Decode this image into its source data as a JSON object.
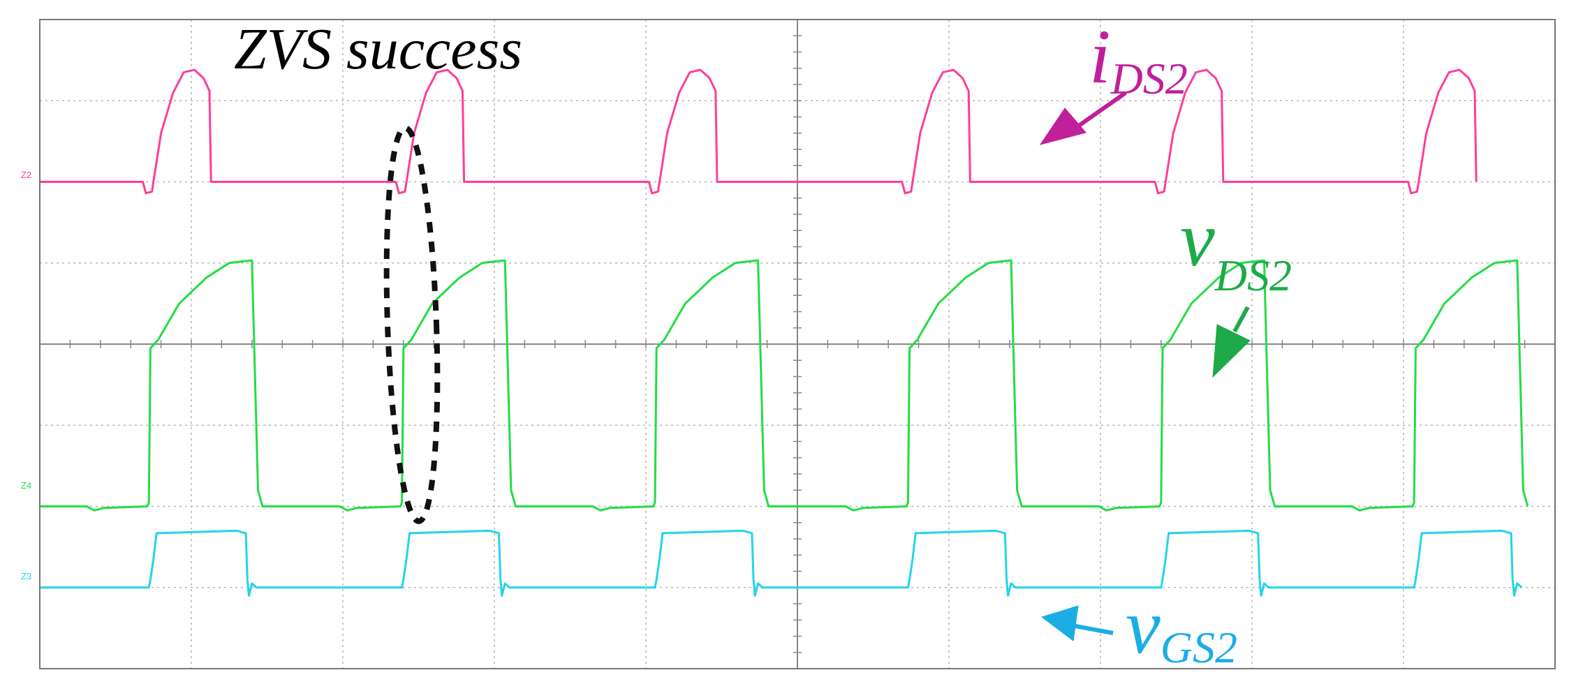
{
  "chart_data": {
    "type": "line",
    "title": "",
    "grid": true,
    "grid_divisions": {
      "x": 10,
      "y": 8
    },
    "annotation": "ZVS success",
    "period_divisions": 1.67,
    "cycles": 6,
    "series": [
      {
        "name_main": "i",
        "name_sub": "DS2",
        "color": "#ff3d9a",
        "label_color": "#c0209a",
        "channel_marker": "Z2",
        "baseline_div": 6.0,
        "waveform": [
          [
            0.0,
            0.0
          ],
          [
            0.68,
            0.0
          ],
          [
            0.7,
            -0.14
          ],
          [
            0.74,
            -0.12
          ],
          [
            0.8,
            0.6
          ],
          [
            0.88,
            1.1
          ],
          [
            0.95,
            1.35
          ],
          [
            1.02,
            1.38
          ],
          [
            1.08,
            1.28
          ],
          [
            1.12,
            1.12
          ],
          [
            1.13,
            0.0
          ],
          [
            1.67,
            0.0
          ]
        ]
      },
      {
        "name_main": "v",
        "name_sub": "DS2",
        "color": "#22dd44",
        "label_color": "#1faa4a",
        "channel_marker": "Z4",
        "baseline_div": 2.0,
        "waveform": [
          [
            0.0,
            0.0
          ],
          [
            0.31,
            0.0
          ],
          [
            0.36,
            -0.05
          ],
          [
            0.42,
            -0.02
          ],
          [
            0.71,
            0.0
          ],
          [
            0.72,
            0.05
          ],
          [
            0.73,
            1.95
          ],
          [
            0.78,
            2.05
          ],
          [
            0.92,
            2.5
          ],
          [
            1.1,
            2.82
          ],
          [
            1.25,
            3.0
          ],
          [
            1.39,
            3.03
          ],
          [
            1.4,
            3.03
          ],
          [
            1.44,
            0.2
          ],
          [
            1.47,
            0.0
          ],
          [
            1.67,
            0.0
          ]
        ]
      },
      {
        "name_main": "v",
        "name_sub": "GS2",
        "color": "#22d4ea",
        "label_color": "#1aaee4",
        "channel_marker": "Z3",
        "baseline_div": 1.0,
        "waveform": [
          [
            0.0,
            0.0
          ],
          [
            0.72,
            0.0
          ],
          [
            0.73,
            0.1
          ],
          [
            0.75,
            0.35
          ],
          [
            0.77,
            0.67
          ],
          [
            1.3,
            0.7
          ],
          [
            1.36,
            0.67
          ],
          [
            1.37,
            0.1
          ],
          [
            1.38,
            -0.1
          ],
          [
            1.4,
            0.05
          ],
          [
            1.43,
            0.0
          ],
          [
            1.67,
            0.0
          ]
        ]
      }
    ]
  }
}
